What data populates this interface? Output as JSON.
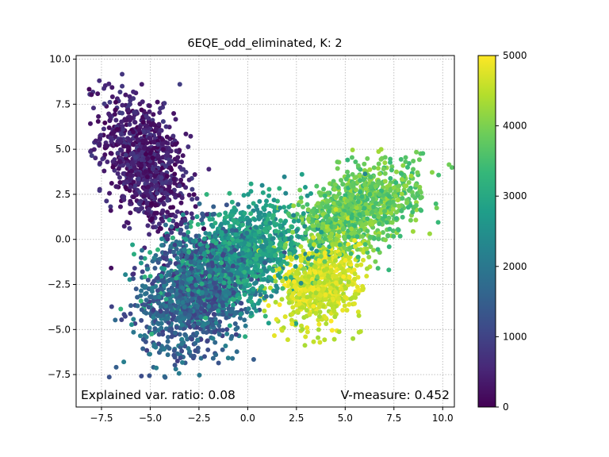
{
  "chart_data": {
    "type": "scatter",
    "title": "6EQE_odd_eliminated, K: 2",
    "xlabel": "",
    "ylabel": "",
    "xlim": [
      -8.8,
      10.6
    ],
    "ylim": [
      -9.3,
      10.2
    ],
    "x_ticks": [
      -7.5,
      -5.0,
      -2.5,
      0.0,
      2.5,
      5.0,
      7.5,
      10.0
    ],
    "x_tick_labels": [
      "−7.5",
      "−5.0",
      "−2.5",
      "0.0",
      "2.5",
      "5.0",
      "7.5",
      "10.0"
    ],
    "y_ticks": [
      -7.5,
      -5.0,
      -2.5,
      0.0,
      2.5,
      5.0,
      7.5,
      10.0
    ],
    "y_tick_labels": [
      "−7.5",
      "−5.0",
      "−2.5",
      "0.0",
      "2.5",
      "5.0",
      "7.5",
      "10.0"
    ],
    "grid": true,
    "colormap": "viridis",
    "color_range": [
      0,
      5000
    ],
    "colorbar_ticks": [
      0,
      1000,
      2000,
      3000,
      4000,
      5000
    ],
    "colorbar_tick_labels": [
      "0",
      "1000",
      "2000",
      "3000",
      "4000",
      "5000"
    ],
    "point_count": 5000,
    "clusters": [
      {
        "frame_range": [
          0,
          900
        ],
        "center": [
          -5.3,
          4.2
        ],
        "spread": [
          1.1,
          1.9
        ],
        "corr": -0.45
      },
      {
        "frame_range": [
          900,
          2200
        ],
        "center": [
          -2.6,
          -2.8
        ],
        "spread": [
          1.4,
          1.7
        ],
        "corr": 0.25
      },
      {
        "frame_range": [
          2200,
          3300
        ],
        "center": [
          -0.5,
          -1.0
        ],
        "spread": [
          1.8,
          1.4
        ],
        "corr": 0.35
      },
      {
        "frame_range": [
          3300,
          4300
        ],
        "center": [
          5.6,
          1.6
        ],
        "spread": [
          1.6,
          1.3
        ],
        "corr": 0.5
      },
      {
        "frame_range": [
          4300,
          5000
        ],
        "center": [
          3.8,
          -2.4
        ],
        "spread": [
          1.0,
          1.2
        ],
        "corr": 0.2
      }
    ],
    "annotations": {
      "explained_var": "Explained var. ratio: 0.08",
      "v_measure": "V-measure: 0.452"
    }
  }
}
